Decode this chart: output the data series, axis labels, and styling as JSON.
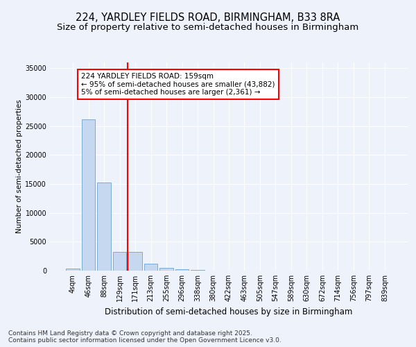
{
  "title1": "224, YARDLEY FIELDS ROAD, BIRMINGHAM, B33 8RA",
  "title2": "Size of property relative to semi-detached houses in Birmingham",
  "xlabel": "Distribution of semi-detached houses by size in Birmingham",
  "ylabel": "Number of semi-detached properties",
  "categories": [
    "4sqm",
    "46sqm",
    "88sqm",
    "129sqm",
    "171sqm",
    "213sqm",
    "255sqm",
    "296sqm",
    "338sqm",
    "380sqm",
    "422sqm",
    "463sqm",
    "505sqm",
    "547sqm",
    "589sqm",
    "630sqm",
    "672sqm",
    "714sqm",
    "756sqm",
    "797sqm",
    "839sqm"
  ],
  "values": [
    400,
    26200,
    15200,
    3300,
    3300,
    1200,
    500,
    280,
    80,
    30,
    15,
    8,
    4,
    2,
    1,
    1,
    0,
    0,
    0,
    0,
    0
  ],
  "bar_color": "#c5d8f0",
  "bar_edge_color": "#7aadd4",
  "vline_index": 4,
  "vline_color": "red",
  "annotation_text": "224 YARDLEY FIELDS ROAD: 159sqm\n← 95% of semi-detached houses are smaller (43,882)\n5% of semi-detached houses are larger (2,361) →",
  "annotation_box_color": "white",
  "annotation_box_edge": "red",
  "ylim": [
    0,
    36000
  ],
  "yticks": [
    0,
    5000,
    10000,
    15000,
    20000,
    25000,
    30000,
    35000
  ],
  "bg_color": "#eef2fb",
  "plot_bg_color": "#eef2fb",
  "grid_color": "white",
  "footer": "Contains HM Land Registry data © Crown copyright and database right 2025.\nContains public sector information licensed under the Open Government Licence v3.0.",
  "title_fontsize": 10.5,
  "subtitle_fontsize": 9.5,
  "tick_fontsize": 7,
  "ylabel_fontsize": 7.5,
  "xlabel_fontsize": 8.5,
  "footer_fontsize": 6.5
}
